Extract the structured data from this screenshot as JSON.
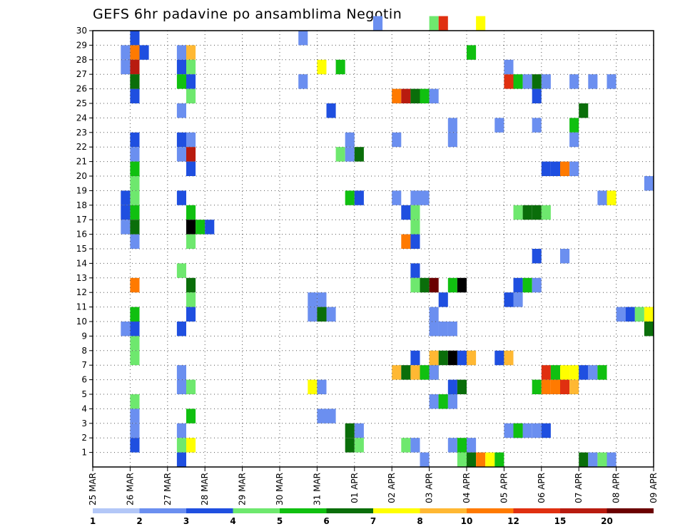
{
  "chart_data": {
    "type": "heatmap",
    "title": "GEFS 6hr padavine po ansamblima Negotin",
    "xlabel": "",
    "ylabel": "",
    "x_ticks": [
      "25 MAR",
      "26 MAR",
      "27 MAR",
      "28 MAR",
      "29 MAR",
      "30 MAR",
      "31 MAR",
      "01 APR",
      "02 APR",
      "03 APR",
      "04 APR",
      "05 APR",
      "06 APR",
      "07 APR",
      "08 APR",
      "09 APR"
    ],
    "x_steps_per_day": 4,
    "x_range": [
      0,
      60
    ],
    "y_range": [
      0,
      30
    ],
    "y_ticks": [
      1,
      2,
      3,
      4,
      5,
      6,
      7,
      8,
      9,
      10,
      11,
      12,
      13,
      14,
      15,
      16,
      17,
      18,
      19,
      20,
      21,
      22,
      23,
      24,
      25,
      26,
      27,
      28,
      29,
      30
    ],
    "grid": true,
    "colorbar": {
      "position": "bottom",
      "colors": [
        "#b3c7f7",
        "#6b8ff0",
        "#1f4fe0",
        "#6ee86e",
        "#10c010",
        "#0a6e0a",
        "#ffff00",
        "#ffb833",
        "#ff7a00",
        "#e03010",
        "#b81b0f",
        "#6b0000"
      ],
      "labels": [
        "1",
        "2",
        "3",
        "4",
        "5",
        "6",
        "7",
        "8",
        "10",
        "12",
        "15",
        "20"
      ]
    },
    "cells": [
      [
        4,
        29,
        2
      ],
      [
        4,
        28,
        1
      ],
      [
        4,
        27,
        1
      ],
      [
        3,
        28,
        1
      ],
      [
        3,
        27,
        1
      ],
      [
        4,
        26,
        4
      ],
      [
        4,
        25,
        2
      ],
      [
        4,
        22,
        2
      ],
      [
        4,
        21,
        1
      ],
      [
        4,
        20,
        4
      ],
      [
        4,
        19,
        3
      ],
      [
        4,
        18,
        3
      ],
      [
        3,
        18,
        2
      ],
      [
        4,
        17,
        4
      ],
      [
        3,
        17,
        2
      ],
      [
        3,
        16,
        1
      ],
      [
        4,
        15,
        1
      ],
      [
        4,
        12,
        8
      ],
      [
        4,
        10,
        4
      ],
      [
        4,
        9,
        2
      ],
      [
        3,
        9,
        1
      ],
      [
        4,
        8,
        3
      ],
      [
        4,
        7,
        3
      ],
      [
        4,
        4,
        3
      ],
      [
        4,
        3,
        1
      ],
      [
        4,
        2,
        1
      ],
      [
        4,
        1,
        2
      ],
      [
        4,
        28,
        8
      ],
      [
        5,
        28,
        2
      ],
      [
        4,
        27,
        10
      ],
      [
        4,
        26,
        5
      ],
      [
        4,
        16,
        5
      ],
      [
        9,
        28,
        1
      ],
      [
        10,
        28,
        7
      ],
      [
        9,
        27,
        2
      ],
      [
        10,
        27,
        3
      ],
      [
        9,
        26,
        4
      ],
      [
        10,
        26,
        2
      ],
      [
        10,
        25,
        3
      ],
      [
        9,
        24,
        1
      ],
      [
        9,
        22,
        2
      ],
      [
        10,
        22,
        1
      ],
      [
        9,
        21,
        1
      ],
      [
        10,
        21,
        10
      ],
      [
        10,
        20,
        2
      ],
      [
        9,
        18,
        2
      ],
      [
        10,
        17,
        4
      ],
      [
        10,
        16,
        12
      ],
      [
        11,
        16,
        4
      ],
      [
        12,
        16,
        2
      ],
      [
        10,
        15,
        3
      ],
      [
        9,
        13,
        3
      ],
      [
        10,
        12,
        5
      ],
      [
        10,
        11,
        3
      ],
      [
        10,
        10,
        2
      ],
      [
        9,
        9,
        2
      ],
      [
        9,
        6,
        1
      ],
      [
        9,
        5,
        1
      ],
      [
        10,
        5,
        3
      ],
      [
        10,
        3,
        4
      ],
      [
        9,
        2,
        1
      ],
      [
        9,
        1,
        3
      ],
      [
        10,
        1,
        6
      ],
      [
        9,
        0,
        2
      ],
      [
        22,
        29,
        1
      ],
      [
        24,
        27,
        6
      ],
      [
        26,
        27,
        4
      ],
      [
        22,
        26,
        1
      ],
      [
        25,
        24,
        2
      ],
      [
        27,
        22,
        1
      ],
      [
        26,
        21,
        3
      ],
      [
        27,
        21,
        1
      ],
      [
        28,
        21,
        5
      ],
      [
        27,
        18,
        4
      ],
      [
        28,
        18,
        2
      ],
      [
        23,
        11,
        1
      ],
      [
        24,
        11,
        1
      ],
      [
        23,
        10,
        1
      ],
      [
        24,
        10,
        5
      ],
      [
        25,
        10,
        1
      ],
      [
        23,
        5,
        6
      ],
      [
        24,
        5,
        1
      ],
      [
        24,
        3,
        1
      ],
      [
        25,
        3,
        1
      ],
      [
        27,
        2,
        5
      ],
      [
        28,
        2,
        1
      ],
      [
        27,
        1,
        5
      ],
      [
        28,
        1,
        3
      ],
      [
        30,
        30,
        1
      ],
      [
        32,
        25,
        8
      ],
      [
        33,
        25,
        10
      ],
      [
        34,
        25,
        5
      ],
      [
        35,
        25,
        4
      ],
      [
        36,
        25,
        1
      ],
      [
        32,
        22,
        1
      ],
      [
        32,
        18,
        1
      ],
      [
        34,
        18,
        1
      ],
      [
        35,
        18,
        1
      ],
      [
        34,
        17,
        3
      ],
      [
        33,
        17,
        2
      ],
      [
        34,
        16,
        3
      ],
      [
        33,
        15,
        8
      ],
      [
        34,
        15,
        2
      ],
      [
        34,
        13,
        2
      ],
      [
        34,
        12,
        3
      ],
      [
        35,
        12,
        5
      ],
      [
        36,
        12,
        11
      ],
      [
        34,
        7,
        2
      ],
      [
        36,
        9,
        1
      ],
      [
        37,
        9,
        1
      ],
      [
        36,
        6,
        5
      ],
      [
        32,
        6,
        7
      ],
      [
        33,
        6,
        5
      ],
      [
        34,
        6,
        7
      ],
      [
        35,
        6,
        4
      ],
      [
        36,
        6,
        1
      ],
      [
        36,
        4,
        1
      ],
      [
        37,
        4,
        4
      ],
      [
        38,
        4,
        1
      ],
      [
        33,
        1,
        3
      ],
      [
        34,
        1,
        1
      ],
      [
        35,
        0,
        1
      ],
      [
        36,
        30,
        3
      ],
      [
        37,
        30,
        9
      ],
      [
        41,
        30,
        6
      ],
      [
        38,
        22,
        1
      ],
      [
        38,
        23,
        1
      ],
      [
        38,
        12,
        4
      ],
      [
        39,
        12,
        12
      ],
      [
        37,
        11,
        2
      ],
      [
        36,
        10,
        1
      ],
      [
        36,
        9,
        1
      ],
      [
        37,
        9,
        1
      ],
      [
        38,
        9,
        1
      ],
      [
        36,
        7,
        7
      ],
      [
        37,
        7,
        5
      ],
      [
        38,
        7,
        12
      ],
      [
        39,
        7,
        2
      ],
      [
        40,
        7,
        7
      ],
      [
        38,
        5,
        2
      ],
      [
        39,
        5,
        5
      ],
      [
        37,
        4,
        4
      ],
      [
        38,
        4,
        1
      ],
      [
        38,
        1,
        1
      ],
      [
        39,
        1,
        4
      ],
      [
        40,
        1,
        1
      ],
      [
        39,
        0,
        3
      ],
      [
        40,
        0,
        5
      ],
      [
        41,
        0,
        8
      ],
      [
        42,
        0,
        6
      ],
      [
        43,
        0,
        4
      ],
      [
        40,
        28,
        4
      ],
      [
        44,
        26,
        9
      ],
      [
        45,
        26,
        4
      ],
      [
        46,
        26,
        1
      ],
      [
        47,
        26,
        5
      ],
      [
        48,
        26,
        1
      ],
      [
        47,
        25,
        2
      ],
      [
        44,
        27,
        1
      ],
      [
        43,
        23,
        1
      ],
      [
        47,
        23,
        1
      ],
      [
        45,
        17,
        3
      ],
      [
        46,
        17,
        5
      ],
      [
        47,
        17,
        5
      ],
      [
        48,
        17,
        3
      ],
      [
        47,
        14,
        2
      ],
      [
        50,
        14,
        1
      ],
      [
        45,
        12,
        2
      ],
      [
        46,
        12,
        4
      ],
      [
        47,
        12,
        1
      ],
      [
        44,
        11,
        2
      ],
      [
        45,
        11,
        1
      ],
      [
        43,
        7,
        2
      ],
      [
        44,
        7,
        7
      ],
      [
        48,
        6,
        9
      ],
      [
        49,
        6,
        4
      ],
      [
        50,
        6,
        6
      ],
      [
        51,
        6,
        6
      ],
      [
        52,
        6,
        2
      ],
      [
        53,
        6,
        1
      ],
      [
        54,
        6,
        4
      ],
      [
        47,
        5,
        4
      ],
      [
        48,
        5,
        8
      ],
      [
        49,
        5,
        8
      ],
      [
        50,
        5,
        9
      ],
      [
        51,
        5,
        7
      ],
      [
        45,
        2,
        2
      ],
      [
        46,
        2,
        1
      ],
      [
        44,
        2,
        1
      ],
      [
        45,
        2,
        4
      ],
      [
        47,
        2,
        1
      ],
      [
        48,
        2,
        2
      ],
      [
        52,
        0,
        5
      ],
      [
        53,
        0,
        1
      ],
      [
        54,
        0,
        3
      ],
      [
        55,
        0,
        1
      ],
      [
        48,
        20,
        2
      ],
      [
        49,
        20,
        2
      ],
      [
        50,
        20,
        8
      ],
      [
        51,
        20,
        1
      ],
      [
        51,
        23,
        4
      ],
      [
        52,
        24,
        5
      ],
      [
        51,
        22,
        1
      ],
      [
        54,
        18,
        1
      ],
      [
        55,
        18,
        6
      ],
      [
        53,
        26,
        1
      ],
      [
        55,
        26,
        1
      ],
      [
        51,
        26,
        1
      ],
      [
        56,
        10,
        1
      ],
      [
        57,
        10,
        2
      ],
      [
        58,
        10,
        3
      ],
      [
        59,
        10,
        6
      ],
      [
        60,
        10,
        10
      ],
      [
        60,
        9,
        3
      ],
      [
        59,
        9,
        5
      ],
      [
        59,
        19,
        1
      ]
    ]
  }
}
